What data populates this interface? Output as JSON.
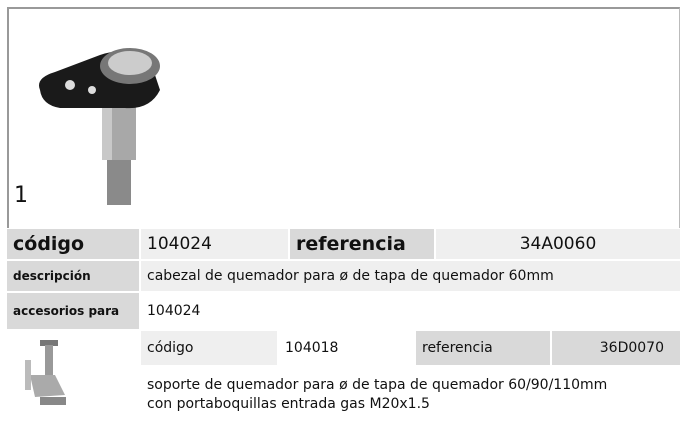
{
  "figure_label": "1",
  "main": {
    "code_label": "código",
    "code": "104024",
    "reference_label": "referencia",
    "reference": "34A0060",
    "description_label": "descripción",
    "description": "cabezal de quemador  para ø de tapa de quemador 60mm",
    "accessories_label": "accesorios para",
    "accessories": "104024"
  },
  "accessory": {
    "code_label": "código",
    "code": "104018",
    "reference_label": "referencia",
    "reference": "36D0070",
    "description_lines": [
      "soporte de quemador  para ø de tapa de quemador 60/90/110mm",
      "con portaboquillas entrada gas M20x1.5"
    ]
  }
}
